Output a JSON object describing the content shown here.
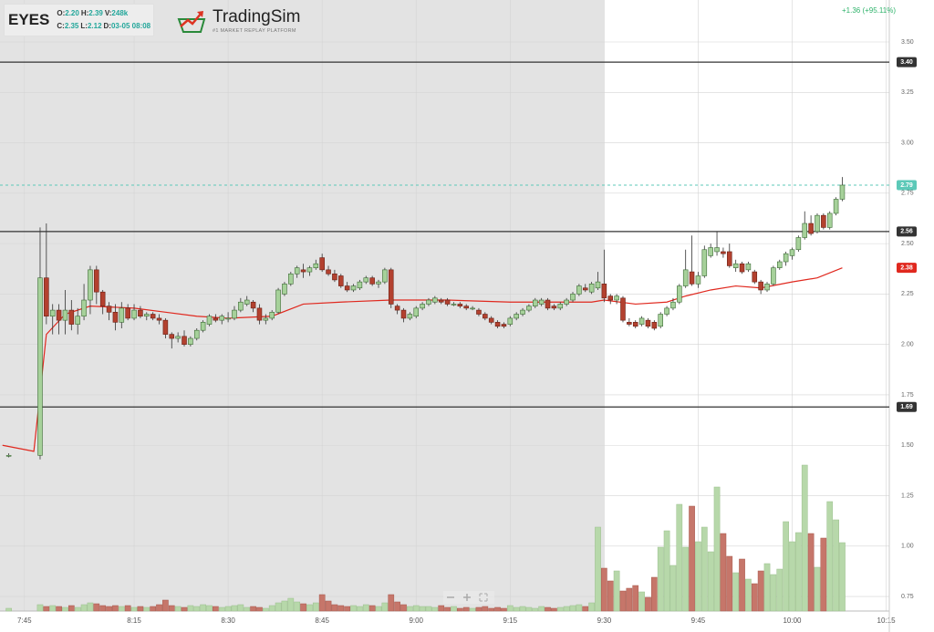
{
  "header": {
    "symbol": "EYES",
    "quote": [
      [
        {
          "label": "O:",
          "value": "2.20"
        },
        {
          "label": "H:",
          "value": "2.39"
        },
        {
          "label": "V:",
          "value": "248k"
        }
      ],
      [
        {
          "label": "C:",
          "value": "2.35"
        },
        {
          "label": "L:",
          "value": "2.12"
        },
        {
          "label": "D:",
          "value": "03-05 08:08"
        }
      ]
    ]
  },
  "logo": {
    "name": "TradingSim",
    "tagline": "#1 MARKET REPLAY PLATFORM"
  },
  "change": "+1.36 (+95.11%)",
  "chart_data": {
    "type": "candlestick",
    "x": [
      -5,
      0,
      1,
      2,
      3,
      4,
      5,
      6,
      7,
      8,
      9,
      10,
      11,
      12,
      13,
      14,
      15,
      16,
      17,
      18,
      19,
      20,
      21,
      22,
      23,
      24,
      25,
      26,
      27,
      28,
      29,
      30,
      31,
      32,
      33,
      34,
      35,
      36,
      37,
      38,
      39,
      40,
      41,
      42,
      43,
      44,
      45,
      46,
      47,
      48,
      49,
      50,
      51,
      52,
      53,
      54,
      55,
      56,
      57,
      58,
      59,
      60,
      61,
      62,
      63,
      64,
      65,
      66,
      67,
      68,
      69,
      70,
      71,
      72,
      73,
      74,
      75,
      76,
      77,
      78,
      79,
      80,
      81,
      82,
      83,
      84,
      85,
      86,
      87,
      88,
      89,
      90,
      91,
      92,
      93,
      94,
      95,
      96,
      97,
      98,
      99,
      100,
      101,
      102,
      103,
      104,
      105,
      106,
      107,
      108,
      109,
      110,
      111,
      112,
      113,
      114,
      115,
      116,
      117,
      118,
      119,
      120,
      121,
      122,
      123,
      124,
      125,
      126,
      127,
      128
    ],
    "open": [
      1.45,
      1.45,
      2.33,
      2.14,
      2.17,
      2.12,
      2.17,
      2.1,
      2.14,
      2.22,
      2.37,
      2.26,
      2.19,
      2.16,
      2.11,
      2.18,
      2.13,
      2.17,
      2.14,
      2.15,
      2.13,
      2.12,
      2.05,
      2.03,
      2.04,
      2.0,
      2.03,
      2.07,
      2.1,
      2.13,
      2.12,
      2.13,
      2.13,
      2.17,
      2.2,
      2.21,
      2.18,
      2.12,
      2.13,
      2.16,
      2.25,
      2.3,
      2.35,
      2.37,
      2.36,
      2.38,
      2.43,
      2.37,
      2.35,
      2.34,
      2.29,
      2.27,
      2.28,
      2.31,
      2.33,
      2.3,
      2.31,
      2.37,
      2.19,
      2.17,
      2.13,
      2.14,
      2.18,
      2.2,
      2.21,
      2.22,
      2.22,
      2.2,
      2.2,
      2.19,
      2.18,
      2.17,
      2.15,
      2.13,
      2.11,
      2.1,
      2.1,
      2.13,
      2.15,
      2.17,
      2.19,
      2.2,
      2.22,
      2.19,
      2.18,
      2.2,
      2.22,
      2.25,
      2.28,
      2.26,
      2.28,
      2.3,
      2.24,
      2.22,
      2.23,
      2.11,
      2.11,
      2.1,
      2.12,
      2.11,
      2.09,
      2.15,
      2.18,
      2.21,
      2.29,
      2.36,
      2.3,
      2.34,
      2.44,
      2.46,
      2.46,
      2.46,
      2.38,
      2.4,
      2.37,
      2.36,
      2.31,
      2.27,
      2.3,
      2.38,
      2.41,
      2.44,
      2.47,
      2.53,
      2.6,
      2.56,
      2.64,
      2.58,
      2.65,
      2.72
    ],
    "high": [
      1.46,
      2.58,
      2.6,
      2.2,
      2.2,
      2.27,
      2.22,
      2.18,
      2.3,
      2.39,
      2.39,
      2.27,
      2.21,
      2.2,
      2.21,
      2.2,
      2.2,
      2.19,
      2.16,
      2.16,
      2.15,
      2.13,
      2.06,
      2.06,
      2.07,
      2.04,
      2.08,
      2.12,
      2.15,
      2.15,
      2.15,
      2.16,
      2.19,
      2.23,
      2.24,
      2.22,
      2.2,
      2.15,
      2.17,
      2.28,
      2.31,
      2.36,
      2.39,
      2.4,
      2.39,
      2.42,
      2.45,
      2.39,
      2.37,
      2.35,
      2.31,
      2.3,
      2.32,
      2.34,
      2.34,
      2.32,
      2.38,
      2.38,
      2.2,
      2.18,
      2.16,
      2.19,
      2.21,
      2.23,
      2.24,
      2.23,
      2.23,
      2.21,
      2.21,
      2.2,
      2.19,
      2.18,
      2.16,
      2.14,
      2.12,
      2.11,
      2.14,
      2.16,
      2.18,
      2.2,
      2.23,
      2.23,
      2.23,
      2.2,
      2.21,
      2.23,
      2.26,
      2.3,
      2.3,
      2.31,
      2.36,
      2.47,
      2.25,
      2.25,
      2.24,
      2.13,
      2.12,
      2.14,
      2.13,
      2.12,
      2.16,
      2.19,
      2.23,
      2.3,
      2.47,
      2.54,
      2.36,
      2.49,
      2.5,
      2.56,
      2.48,
      2.5,
      2.42,
      2.41,
      2.41,
      2.37,
      2.32,
      2.31,
      2.39,
      2.42,
      2.46,
      2.48,
      2.54,
      2.66,
      2.64,
      2.65,
      2.65,
      2.66,
      2.73,
      2.83
    ],
    "low": [
      1.44,
      1.43,
      2.1,
      2.05,
      2.05,
      2.05,
      2.07,
      2.05,
      2.12,
      2.15,
      2.2,
      2.15,
      2.12,
      2.07,
      2.08,
      2.12,
      2.12,
      2.13,
      2.12,
      2.12,
      2.1,
      2.03,
      1.98,
      2.01,
      1.99,
      1.99,
      2.02,
      2.06,
      2.09,
      2.11,
      2.1,
      2.11,
      2.12,
      2.16,
      2.19,
      2.16,
      2.1,
      2.1,
      2.12,
      2.15,
      2.24,
      2.29,
      2.33,
      2.33,
      2.34,
      2.37,
      2.36,
      2.34,
      2.31,
      2.28,
      2.26,
      2.26,
      2.27,
      2.3,
      2.29,
      2.28,
      2.3,
      2.18,
      2.15,
      2.11,
      2.12,
      2.13,
      2.17,
      2.19,
      2.2,
      2.2,
      2.19,
      2.19,
      2.18,
      2.17,
      2.17,
      2.14,
      2.12,
      2.1,
      2.08,
      2.08,
      2.09,
      2.12,
      2.14,
      2.16,
      2.18,
      2.19,
      2.17,
      2.17,
      2.17,
      2.19,
      2.21,
      2.24,
      2.26,
      2.25,
      2.27,
      2.21,
      2.2,
      2.2,
      2.11,
      2.09,
      2.08,
      2.09,
      2.08,
      2.07,
      2.08,
      2.14,
      2.17,
      2.2,
      2.28,
      2.29,
      2.28,
      2.33,
      2.43,
      2.44,
      2.43,
      2.38,
      2.36,
      2.35,
      2.36,
      2.3,
      2.25,
      2.26,
      2.29,
      2.37,
      2.39,
      2.42,
      2.46,
      2.52,
      2.54,
      2.55,
      2.57,
      2.57,
      2.64,
      2.71
    ],
    "close": [
      1.45,
      2.33,
      2.14,
      2.17,
      2.12,
      2.17,
      2.1,
      2.14,
      2.22,
      2.37,
      2.26,
      2.19,
      2.16,
      2.11,
      2.18,
      2.13,
      2.17,
      2.14,
      2.15,
      2.13,
      2.12,
      2.05,
      2.03,
      2.04,
      2.0,
      2.03,
      2.07,
      2.11,
      2.14,
      2.12,
      2.14,
      2.13,
      2.17,
      2.21,
      2.22,
      2.18,
      2.12,
      2.13,
      2.16,
      2.27,
      2.3,
      2.35,
      2.38,
      2.36,
      2.38,
      2.4,
      2.37,
      2.35,
      2.32,
      2.29,
      2.27,
      2.29,
      2.31,
      2.33,
      2.3,
      2.31,
      2.37,
      2.2,
      2.17,
      2.13,
      2.15,
      2.18,
      2.2,
      2.22,
      2.23,
      2.21,
      2.2,
      2.2,
      2.19,
      2.18,
      2.18,
      2.15,
      2.13,
      2.11,
      2.09,
      2.09,
      2.13,
      2.15,
      2.17,
      2.19,
      2.22,
      2.22,
      2.18,
      2.18,
      2.2,
      2.22,
      2.25,
      2.29,
      2.27,
      2.3,
      2.31,
      2.23,
      2.22,
      2.24,
      2.12,
      2.1,
      2.09,
      2.13,
      2.09,
      2.08,
      2.15,
      2.18,
      2.21,
      2.29,
      2.37,
      2.3,
      2.34,
      2.47,
      2.48,
      2.48,
      2.45,
      2.39,
      2.4,
      2.36,
      2.4,
      2.31,
      2.27,
      2.3,
      2.38,
      2.41,
      2.45,
      2.47,
      2.53,
      2.6,
      2.55,
      2.64,
      2.58,
      2.65,
      2.72,
      2.79
    ],
    "volume": [
      300,
      700,
      500,
      600,
      500,
      400,
      600,
      400,
      700,
      900,
      800,
      600,
      500,
      600,
      500,
      600,
      400,
      500,
      400,
      500,
      700,
      1200,
      600,
      500,
      400,
      600,
      500,
      700,
      600,
      500,
      400,
      500,
      600,
      700,
      400,
      500,
      400,
      300,
      600,
      900,
      1100,
      1400,
      1000,
      800,
      700,
      900,
      1800,
      1100,
      700,
      600,
      500,
      600,
      500,
      700,
      600,
      500,
      900,
      1800,
      1000,
      700,
      500,
      600,
      500,
      500,
      400,
      600,
      400,
      500,
      300,
      400,
      300,
      400,
      500,
      300,
      400,
      300,
      600,
      400,
      500,
      400,
      300,
      500,
      400,
      300,
      400,
      500,
      600,
      700,
      500,
      900,
      9200,
      4700,
      3300,
      4400,
      2200,
      2500,
      2800,
      2100,
      1500,
      3700,
      7000,
      8800,
      5000,
      11700,
      7000,
      11500,
      7600,
      9200,
      6500,
      13600,
      8500,
      6000,
      4200,
      5700,
      3500,
      3000,
      4400,
      5200,
      4000,
      4600,
      9800,
      7600,
      8600,
      16000,
      8500,
      4800,
      8000,
      12000,
      10000,
      7500
    ],
    "vlim": [
      0,
      17000
    ],
    "moving_average": {
      "color": "#e0281e",
      "x": [
        -6,
        -1,
        1,
        4,
        8,
        15,
        20,
        25,
        30,
        37,
        42,
        48,
        56,
        65,
        75,
        88,
        90,
        95,
        100,
        103,
        107,
        111,
        115,
        120,
        124,
        128
      ],
      "values": [
        1.5,
        1.47,
        2.05,
        2.15,
        2.19,
        2.18,
        2.16,
        2.14,
        2.13,
        2.14,
        2.2,
        2.21,
        2.22,
        2.22,
        2.21,
        2.21,
        2.22,
        2.2,
        2.21,
        2.24,
        2.27,
        2.29,
        2.28,
        2.31,
        2.33,
        2.38
      ],
      "label": {
        "value": 2.38,
        "label": "2.38"
      }
    },
    "levels": [
      {
        "value": 3.4,
        "label": "3.40"
      },
      {
        "value": 2.56,
        "label": "2.56"
      },
      {
        "value": 1.69,
        "label": "1.69"
      }
    ],
    "last_price": {
      "value": 2.79,
      "label": "2.79"
    },
    "colors": {
      "up": "#a6d19a",
      "up_edge": "#3d6b35",
      "down": "#b3412f",
      "down_edge": "#6a1f14",
      "vol_up": "#b7d8aa",
      "vol_down": "#c6766a",
      "level": "#333333",
      "last": "#5cc9b8"
    },
    "xlim": [
      -6.4,
      135.5
    ],
    "xticks": [
      {
        "value": -2.5,
        "label": "7:45"
      },
      {
        "value": 15,
        "label": "8:15"
      },
      {
        "value": 30,
        "label": "8:30"
      },
      {
        "value": 45,
        "label": "8:45"
      },
      {
        "value": 60,
        "label": "9:00"
      },
      {
        "value": 75,
        "label": "9:15"
      },
      {
        "value": 90,
        "label": "9:30"
      },
      {
        "value": 105,
        "label": "9:45"
      },
      {
        "value": 120,
        "label": "10:00"
      },
      {
        "value": 135,
        "label": "10:15"
      }
    ],
    "ylim": [
      0.678,
      3.708
    ],
    "yticks": [
      {
        "value": 0.75,
        "label": "0.75"
      },
      {
        "value": 1,
        "label": "1.00"
      },
      {
        "value": 1.25,
        "label": "1.25"
      },
      {
        "value": 1.5,
        "label": "1.50"
      },
      {
        "value": 1.75,
        "label": "1.75"
      },
      {
        "value": 2,
        "label": "2.00"
      },
      {
        "value": 2.25,
        "label": "2.25"
      },
      {
        "value": 2.5,
        "label": "2.50"
      },
      {
        "value": 2.75,
        "label": "2.75"
      },
      {
        "value": 3,
        "label": "3.00"
      },
      {
        "value": 3.25,
        "label": "3.25"
      },
      {
        "value": 3.5,
        "label": "3.50"
      }
    ],
    "grid": true
  }
}
